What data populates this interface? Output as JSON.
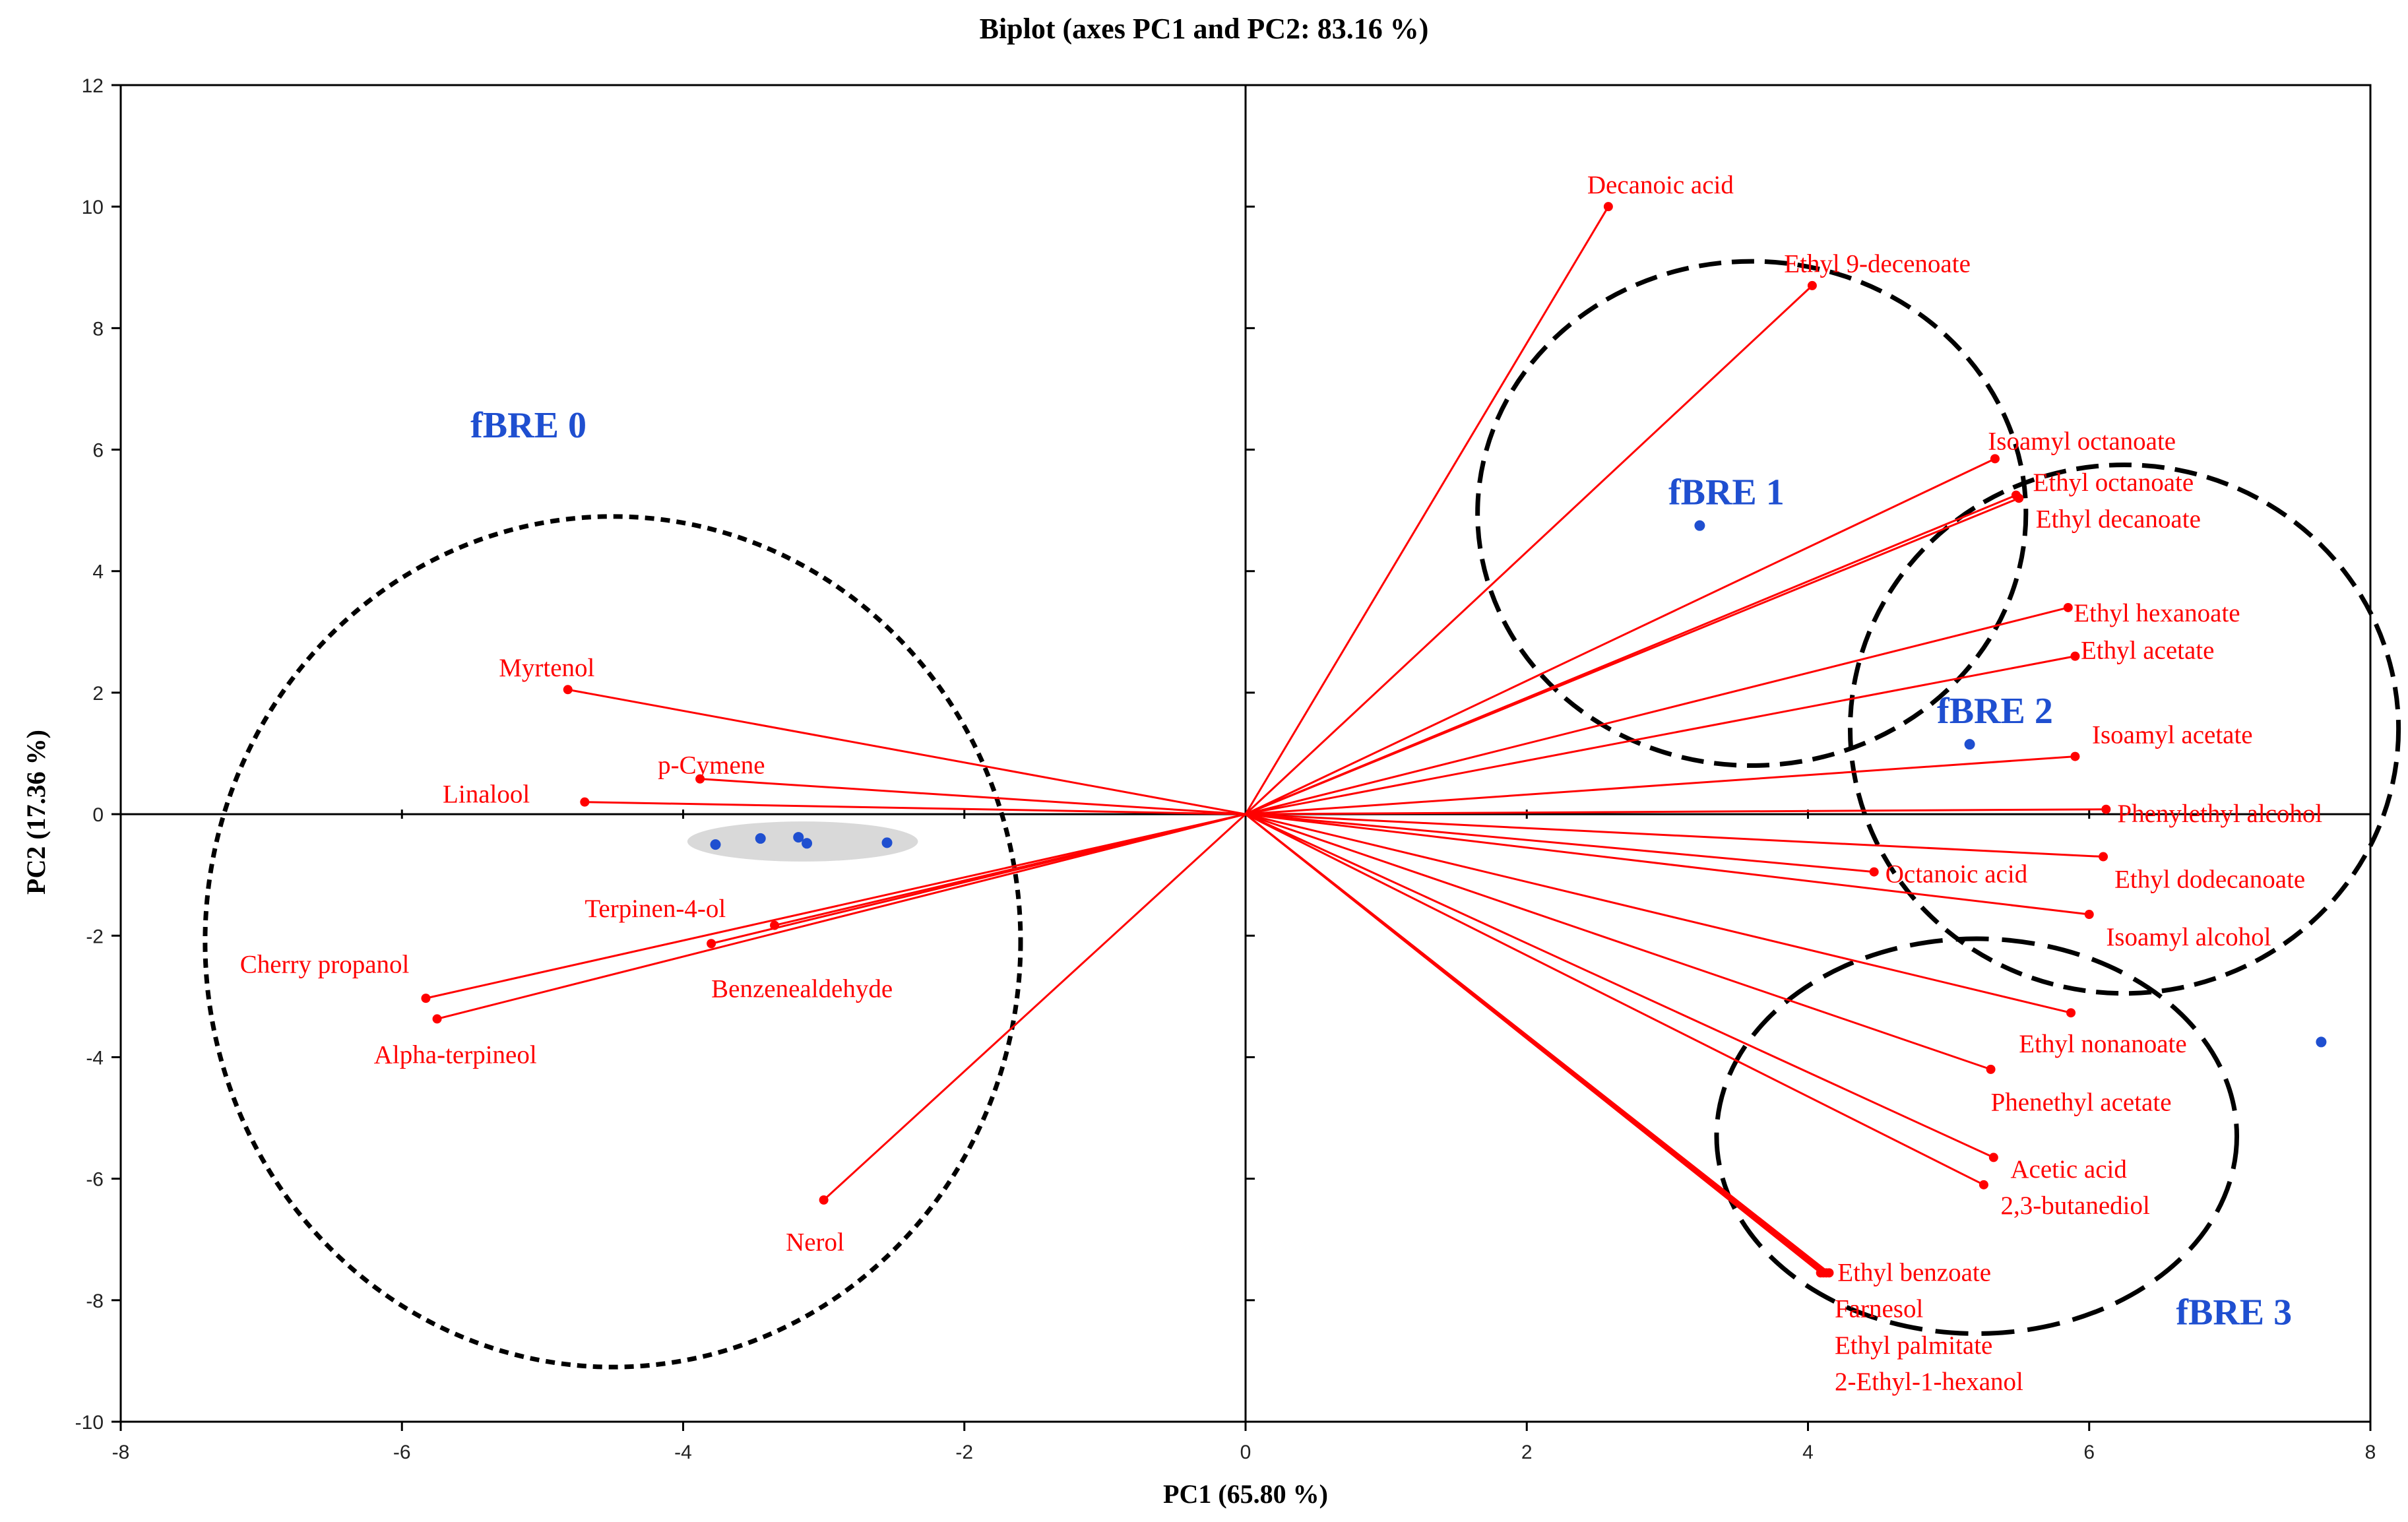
{
  "chart_data": {
    "type": "scatter",
    "subtype": "pca-biplot",
    "title": "Biplot (axes PC1 and PC2: 83.16 %)",
    "xlabel": "PC1 (65.80 %)",
    "ylabel": "PC2 (17.36 %)",
    "xlim": [
      -8,
      8
    ],
    "ylim": [
      -10,
      12
    ],
    "xticks": [
      -8,
      -6,
      -4,
      -2,
      0,
      2,
      4,
      6,
      8
    ],
    "yticks": [
      -10,
      -8,
      -6,
      -4,
      -2,
      0,
      2,
      4,
      6,
      8,
      10,
      12
    ],
    "colors": {
      "vector": "#ff0000",
      "observation": "#1f4fd0",
      "group_label": "#1f4fd0",
      "frame": "#000000",
      "highlight": "#d9d9d9"
    },
    "variables": [
      {
        "name": "Decanoic acid",
        "x": 2.58,
        "y": 10.0
      },
      {
        "name": "Ethyl 9-decenoate",
        "x": 4.03,
        "y": 8.7
      },
      {
        "name": "Isoamyl octanoate",
        "x": 5.33,
        "y": 5.85
      },
      {
        "name": "Ethyl octanoate",
        "x": 5.48,
        "y": 5.25
      },
      {
        "name": "Ethyl decanoate",
        "x": 5.5,
        "y": 5.2
      },
      {
        "name": "Ethyl hexanoate",
        "x": 5.85,
        "y": 3.4
      },
      {
        "name": "Ethyl acetate",
        "x": 5.9,
        "y": 2.6
      },
      {
        "name": "Isoamyl acetate",
        "x": 5.9,
        "y": 0.95
      },
      {
        "name": "Phenylethyl alcohol",
        "x": 6.12,
        "y": 0.08
      },
      {
        "name": "Ethyl dodecanoate",
        "x": 6.1,
        "y": -0.7
      },
      {
        "name": "Octanoic acid",
        "x": 4.47,
        "y": -0.95
      },
      {
        "name": "Isoamyl alcohol",
        "x": 6.0,
        "y": -1.65
      },
      {
        "name": "Ethyl nonanoate",
        "x": 5.87,
        "y": -3.27
      },
      {
        "name": "Phenethyl acetate",
        "x": 5.3,
        "y": -4.2
      },
      {
        "name": "Acetic acid",
        "x": 5.32,
        "y": -5.65
      },
      {
        "name": "2,3-butanediol",
        "x": 5.25,
        "y": -6.1
      },
      {
        "name": "Ethyl benzoate",
        "x": 4.15,
        "y": -7.55
      },
      {
        "name": "Farnesol",
        "x": 4.13,
        "y": -7.55
      },
      {
        "name": "Ethyl palmitate",
        "x": 4.11,
        "y": -7.55
      },
      {
        "name": "2-Ethyl-1-hexanol",
        "x": 4.09,
        "y": -7.55
      },
      {
        "name": "Myrtenol",
        "x": -4.82,
        "y": 2.05
      },
      {
        "name": "p-Cymene",
        "x": -3.88,
        "y": 0.58
      },
      {
        "name": "Linalool",
        "x": -4.7,
        "y": 0.2
      },
      {
        "name": "Terpinen-4-ol",
        "x": -3.35,
        "y": -1.83
      },
      {
        "name": "Benzenealdehyde",
        "x": -3.8,
        "y": -2.13
      },
      {
        "name": "Cherry propanol",
        "x": -5.83,
        "y": -3.03
      },
      {
        "name": "Alpha-terpineol",
        "x": -5.75,
        "y": -3.37
      },
      {
        "name": "Nerol",
        "x": -3.0,
        "y": -6.35
      }
    ],
    "observations": [
      {
        "x": -3.77,
        "y": -0.5
      },
      {
        "x": -3.45,
        "y": -0.4
      },
      {
        "x": -3.18,
        "y": -0.38
      },
      {
        "x": -3.12,
        "y": -0.48
      },
      {
        "x": -2.55,
        "y": -0.47
      },
      {
        "x": 3.23,
        "y": 4.75
      },
      {
        "x": 5.15,
        "y": 1.15
      },
      {
        "x": 7.65,
        "y": -3.75
      }
    ],
    "groups": [
      {
        "name": "fBRE 0",
        "ellipse": {
          "cx": -4.5,
          "cy": -2.1,
          "rx": 2.9,
          "ry": 7.0,
          "dash": "short"
        }
      },
      {
        "name": "fBRE 1",
        "ellipse": {
          "cx": 3.6,
          "cy": 4.95,
          "rx": 1.95,
          "ry": 4.15,
          "dash": "long"
        }
      },
      {
        "name": "fBRE 2",
        "ellipse": {
          "cx": 6.25,
          "cy": 1.4,
          "rx": 1.95,
          "ry": 4.35,
          "dash": "long"
        }
      },
      {
        "name": "fBRE 3",
        "ellipse": {
          "cx": 5.2,
          "cy": -5.3,
          "rx": 1.85,
          "ry": 3.25,
          "dash": "longer"
        }
      }
    ],
    "highlight_region": {
      "cx": -3.15,
      "cy": -0.45,
      "rx": 0.82,
      "ry": 0.33
    }
  }
}
